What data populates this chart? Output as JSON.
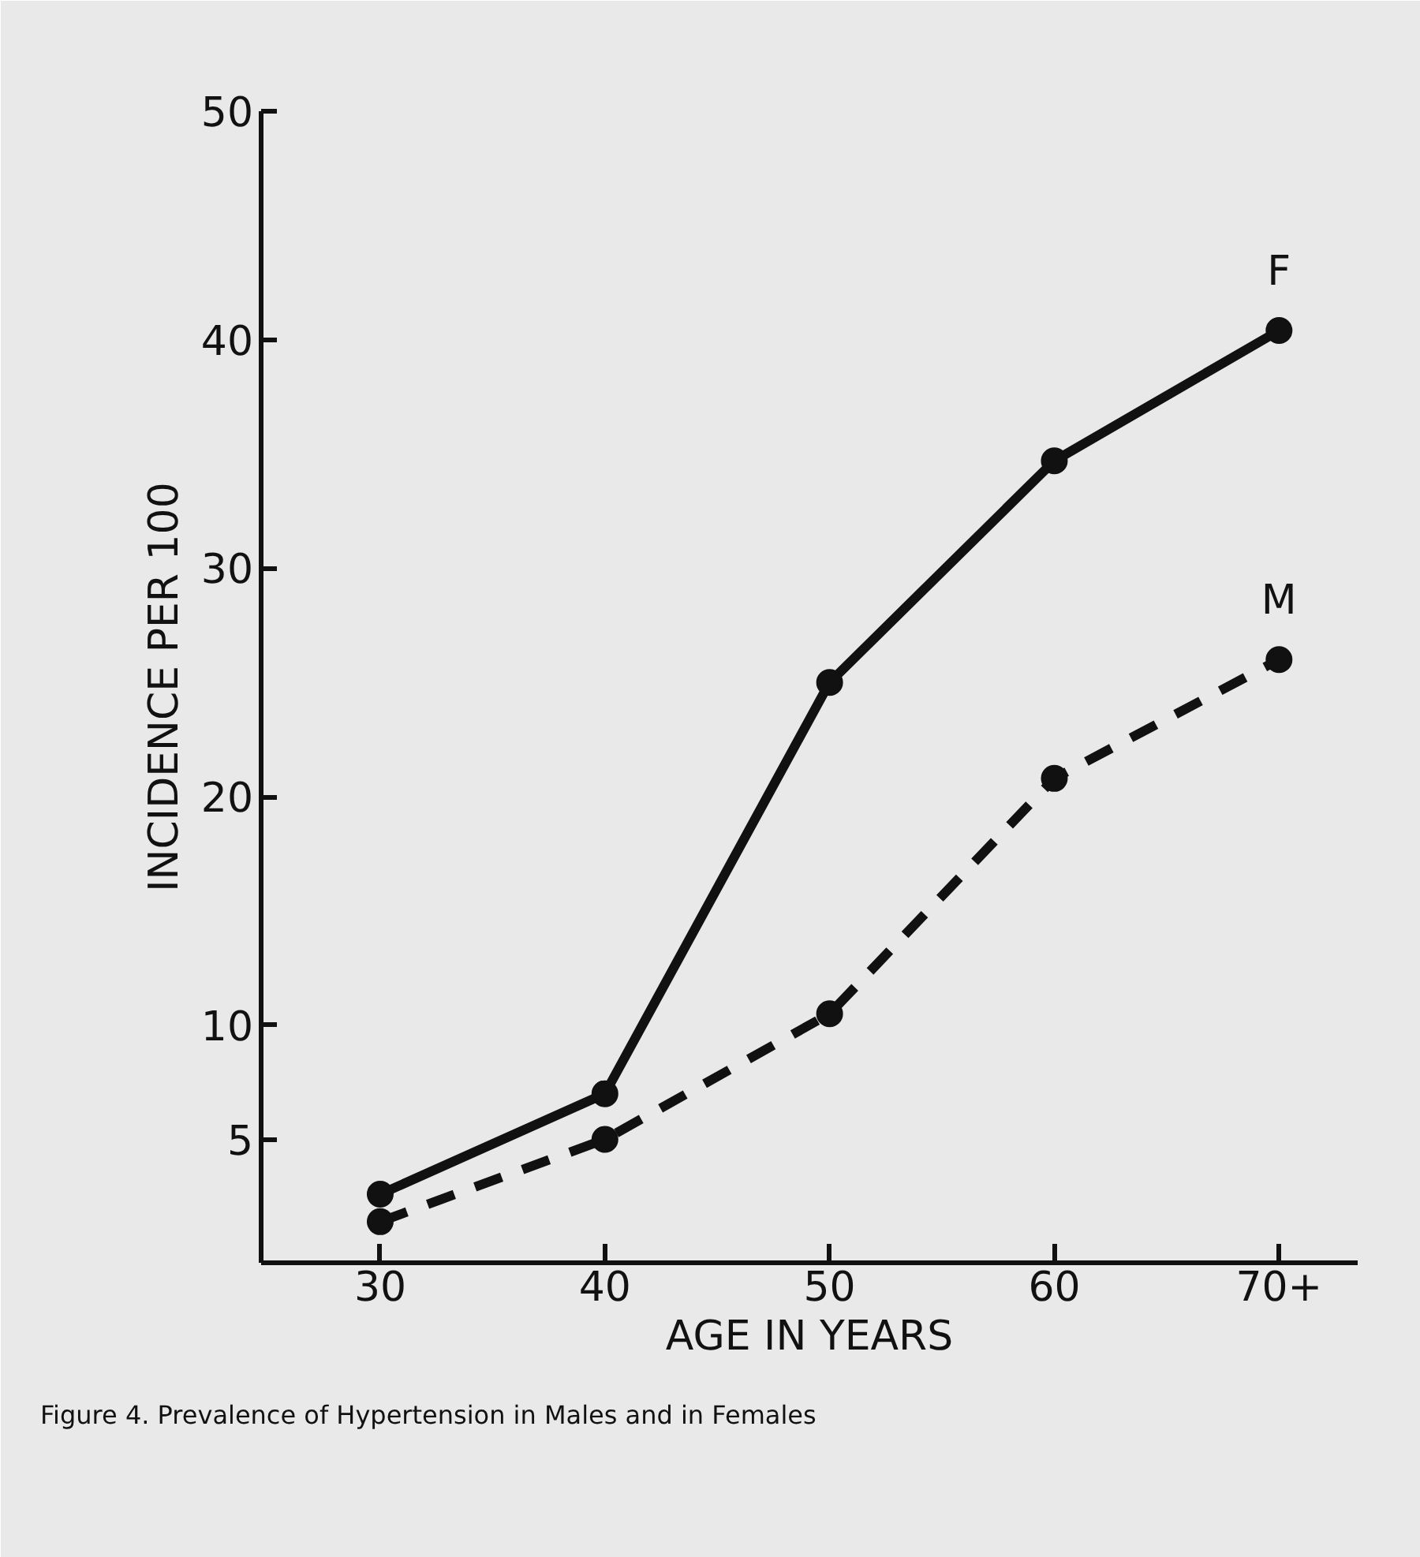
{
  "chart_data": {
    "type": "line",
    "xlabel": "AGE IN YEARS",
    "ylabel": "INCIDENCE PER 100",
    "categories": [
      "30",
      "40",
      "50",
      "60",
      "70+"
    ],
    "ylim": [
      -0.4,
      50
    ],
    "yticks": [
      5,
      10,
      20,
      30,
      40,
      50
    ],
    "marker": "circle",
    "series": [
      {
        "name": "F",
        "color": "#111111",
        "line_style": "solid",
        "values": [
          2.6,
          7.0,
          25.0,
          34.7,
          40.4
        ]
      },
      {
        "name": "M",
        "color": "#111111",
        "line_style": "dashed",
        "values": [
          1.4,
          5.0,
          10.5,
          20.8,
          26.0
        ]
      }
    ],
    "annotations": [
      "Figure 4. Prevalence of Hypertension in Males and in Females"
    ]
  }
}
